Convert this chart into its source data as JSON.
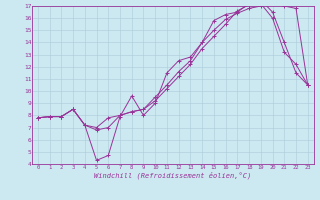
{
  "xlabel": "Windchill (Refroidissement éolien,°C)",
  "xlim": [
    -0.5,
    23.5
  ],
  "ylim": [
    4,
    17
  ],
  "xticks": [
    0,
    1,
    2,
    3,
    4,
    5,
    6,
    7,
    8,
    9,
    10,
    11,
    12,
    13,
    14,
    15,
    16,
    17,
    18,
    19,
    20,
    21,
    22,
    23
  ],
  "yticks": [
    4,
    5,
    6,
    7,
    8,
    9,
    10,
    11,
    12,
    13,
    14,
    15,
    16,
    17
  ],
  "line_color": "#993399",
  "bg_color": "#cce8f0",
  "grid_color": "#aaccda",
  "line1_x": [
    0,
    1,
    2,
    3,
    4,
    5,
    6,
    7,
    8,
    9,
    10,
    11,
    12,
    13,
    14,
    15,
    16,
    17,
    18,
    19,
    20,
    21,
    22,
    23
  ],
  "line1_y": [
    7.8,
    7.9,
    7.9,
    8.5,
    7.2,
    4.3,
    4.7,
    7.9,
    9.6,
    8.0,
    9.0,
    11.5,
    12.5,
    12.8,
    14.0,
    15.8,
    16.3,
    16.5,
    17.2,
    17.2,
    16.0,
    13.2,
    12.2,
    10.5
  ],
  "line2_x": [
    0,
    1,
    2,
    3,
    4,
    5,
    6,
    7,
    8,
    9,
    10,
    11,
    12,
    13,
    14,
    15,
    16,
    17,
    18,
    19,
    20,
    21,
    22,
    23
  ],
  "line2_y": [
    7.8,
    7.9,
    7.9,
    8.5,
    7.2,
    6.8,
    7.0,
    8.0,
    8.3,
    8.5,
    9.5,
    10.5,
    11.6,
    12.5,
    14.0,
    15.0,
    15.9,
    16.4,
    16.8,
    17.0,
    17.3,
    17.0,
    16.8,
    10.5
  ],
  "line3_x": [
    0,
    1,
    2,
    3,
    4,
    5,
    6,
    7,
    8,
    9,
    10,
    11,
    12,
    13,
    14,
    15,
    16,
    17,
    18,
    19,
    20,
    21,
    22,
    23
  ],
  "line3_y": [
    7.8,
    7.9,
    7.9,
    8.5,
    7.2,
    7.0,
    7.8,
    8.0,
    8.3,
    8.5,
    9.2,
    10.2,
    11.2,
    12.2,
    13.5,
    14.5,
    15.5,
    16.6,
    17.1,
    17.5,
    16.5,
    14.0,
    11.5,
    10.5
  ]
}
